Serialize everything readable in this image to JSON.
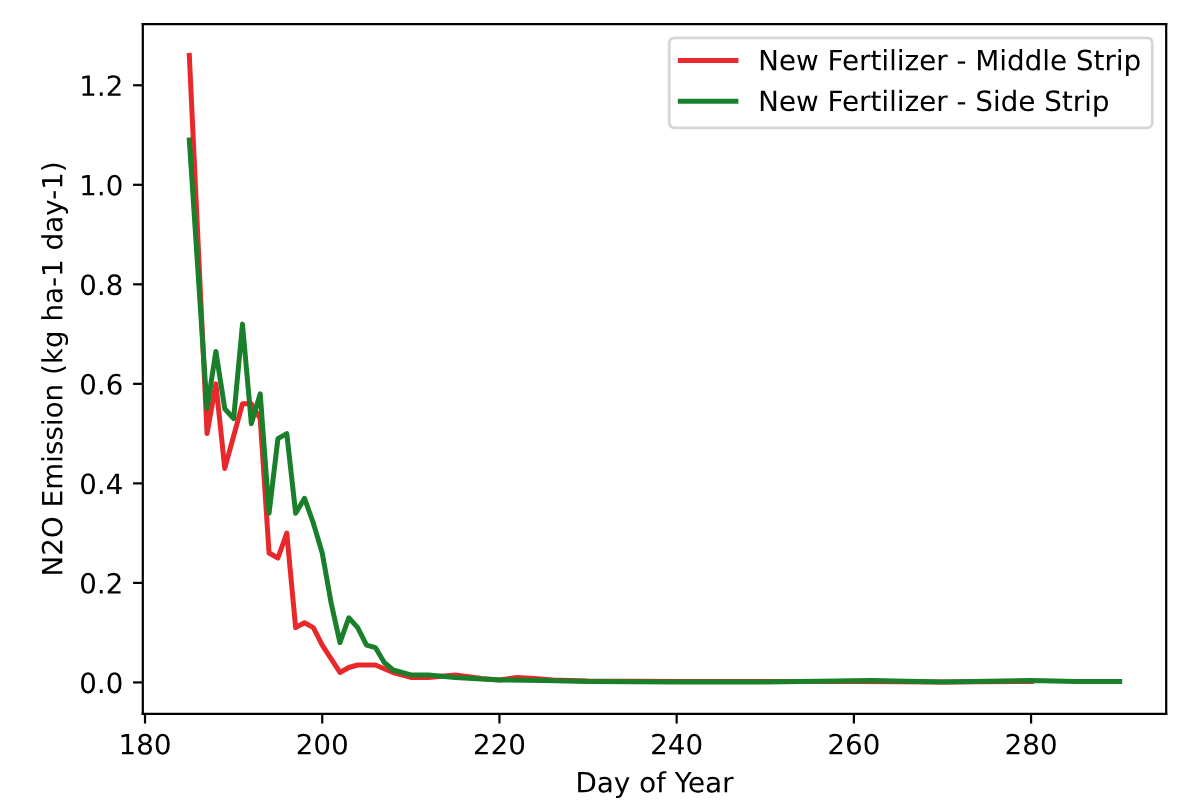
{
  "chart_data": {
    "type": "line",
    "xlabel": "Day of Year",
    "ylabel": "N2O Emission (kg ha-1 day-1)",
    "xlim": [
      179.75,
      295.25
    ],
    "ylim": [
      -0.063,
      1.323
    ],
    "xticks": [
      180,
      200,
      220,
      240,
      260,
      280
    ],
    "yticks": [
      {
        "value": 0,
        "label": "0.0"
      },
      0.2,
      0.4,
      0.6,
      0.8,
      {
        "value": 1,
        "label": "1.0"
      },
      1.2
    ],
    "grid": false,
    "legend": "top right",
    "marker": "none",
    "line_style": "solid",
    "series": [
      {
        "name": "New Fertilizer - Middle Strip",
        "color": "#e8282a",
        "x": [
          185,
          187,
          188,
          189,
          191,
          192,
          193,
          194,
          195,
          196,
          197,
          198,
          199,
          200,
          202,
          203,
          204,
          206,
          208,
          210,
          212,
          215,
          218,
          220,
          222,
          224,
          226,
          230,
          240,
          250,
          260,
          270,
          280
        ],
        "values": [
          1.26,
          0.5,
          0.6,
          0.43,
          0.56,
          0.56,
          0.53,
          0.26,
          0.25,
          0.3,
          0.11,
          0.12,
          0.11,
          0.075,
          0.02,
          0.03,
          0.035,
          0.035,
          0.02,
          0.01,
          0.01,
          0.015,
          0.008,
          0.005,
          0.01,
          0.008,
          0.005,
          0.003,
          0.002,
          0.002,
          0.002,
          0.001,
          0.002
        ]
      },
      {
        "name": "New Fertilizer - Side Strip",
        "color": "#1a7f2a",
        "x": [
          185,
          187,
          188,
          189,
          190,
          191,
          192,
          193,
          194,
          195,
          196,
          197,
          198,
          199,
          200,
          201,
          202,
          203,
          204,
          205,
          206,
          207,
          208,
          210,
          212,
          215,
          220,
          225,
          230,
          240,
          250,
          262,
          270,
          280,
          285,
          290
        ],
        "values": [
          1.09,
          0.55,
          0.665,
          0.55,
          0.53,
          0.72,
          0.52,
          0.58,
          0.34,
          0.49,
          0.5,
          0.34,
          0.37,
          0.32,
          0.26,
          0.16,
          0.08,
          0.13,
          0.11,
          0.075,
          0.07,
          0.04,
          0.025,
          0.015,
          0.015,
          0.01,
          0.005,
          0.004,
          0.002,
          0.001,
          0.001,
          0.004,
          0.001,
          0.004,
          0.002,
          0.002
        ]
      }
    ]
  }
}
